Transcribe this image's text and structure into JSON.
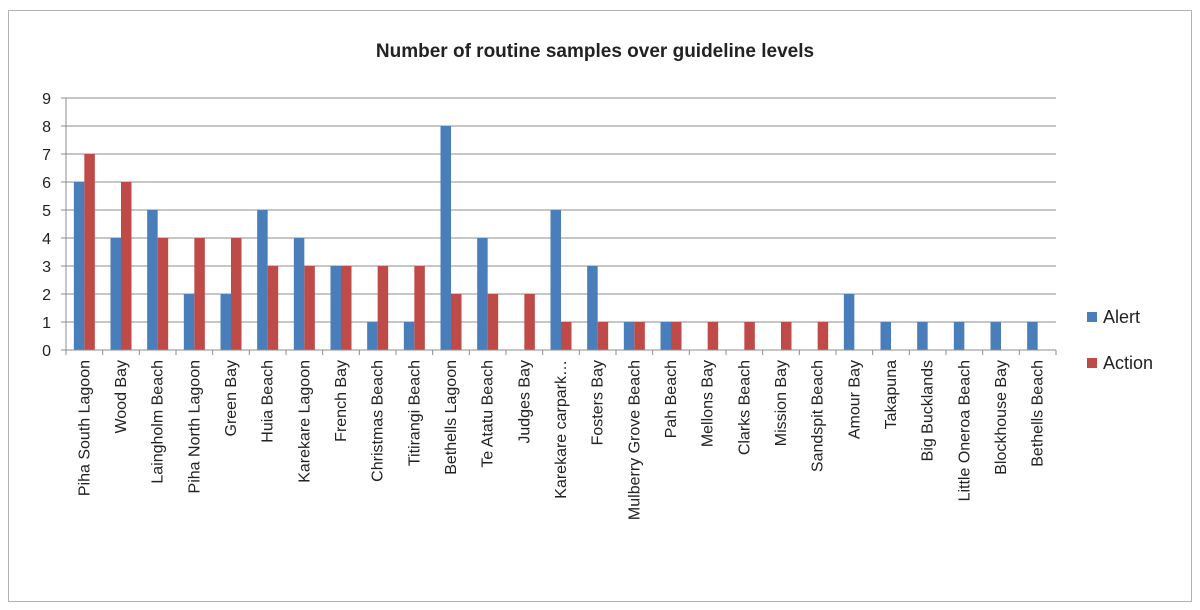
{
  "chart_data": {
    "type": "bar",
    "title": "Number of routine samples over guideline levels",
    "xlabel": "",
    "ylabel": "",
    "ylim": [
      0,
      9
    ],
    "yticks": [
      "0",
      "1",
      "2",
      "3",
      "4",
      "5",
      "6",
      "7",
      "8",
      "9"
    ],
    "grid": true,
    "legend_position": "right",
    "categories": [
      "Piha South Lagoon",
      "Wood Bay",
      "Laingholm Beach",
      "Piha North Lagoon",
      "Green Bay",
      "Huia Beach",
      "Karekare Lagoon",
      "French Bay",
      "Christmas Beach",
      "Titirangi Beach",
      "Bethells Lagoon",
      "Te Atatu Beach",
      "Judges Bay",
      "Karekare carpark…",
      "Fosters Bay",
      "Mulberry Grove Beach",
      "Pah Beach",
      "Mellons Bay",
      "Clarks Beach",
      "Mission Bay",
      "Sandspit Beach",
      "Amour Bay",
      "Takapuna",
      "Big Bucklands",
      "Little Oneroa Beach",
      "Blockhouse Bay",
      "Bethells Beach"
    ],
    "series": [
      {
        "name": "Alert",
        "color": "#4a7ebb",
        "values": [
          6,
          4,
          5,
          2,
          2,
          5,
          4,
          3,
          1,
          1,
          8,
          4,
          0,
          5,
          3,
          1,
          1,
          0,
          0,
          0,
          0,
          2,
          1,
          1,
          1,
          1,
          1
        ]
      },
      {
        "name": "Action",
        "color": "#be4b48",
        "values": [
          7,
          6,
          4,
          4,
          4,
          3,
          3,
          3,
          3,
          3,
          2,
          2,
          2,
          1,
          1,
          1,
          1,
          1,
          1,
          1,
          1,
          0,
          0,
          0,
          0,
          0,
          0
        ]
      }
    ]
  }
}
